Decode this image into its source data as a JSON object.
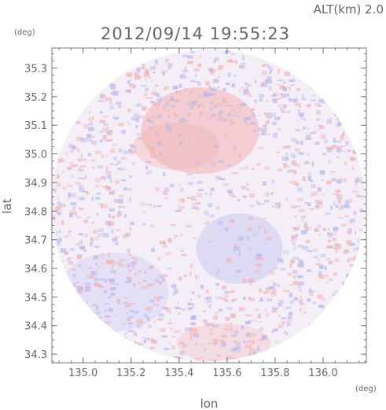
{
  "header": {
    "altitude": "ALT(km) 2.0",
    "timestamp": "2012/09/14 19:55:23"
  },
  "chart_data": {
    "type": "heatmap",
    "xlabel": "lon",
    "ylabel": "lat",
    "xunit": "(deg)",
    "yunit": "(deg)",
    "xlim": [
      134.87,
      136.18
    ],
    "ylim": [
      34.27,
      35.37
    ],
    "xticks": [
      135.0,
      135.2,
      135.4,
      135.6,
      135.8,
      136.0
    ],
    "yticks": [
      34.3,
      34.4,
      34.5,
      34.6,
      34.7,
      34.8,
      34.9,
      35.0,
      35.1,
      35.2,
      35.3
    ],
    "xtick_labels": [
      "135.0",
      "135.2",
      "135.4",
      "135.6",
      "135.8",
      "136.0"
    ],
    "ytick_labels": [
      "34.3",
      "34.4",
      "34.5",
      "34.6",
      "34.7",
      "34.8",
      "34.9",
      "35.0",
      "35.1",
      "35.2",
      "35.3"
    ],
    "radar_center": [
      135.52,
      34.82
    ],
    "radar_radius_lon": 0.655,
    "radar_radius_lat": 0.545,
    "colors": {
      "positive": "#f2b3b3",
      "negative": "#b3b8f2",
      "neutral": "#f4eef6"
    },
    "grid": false
  }
}
